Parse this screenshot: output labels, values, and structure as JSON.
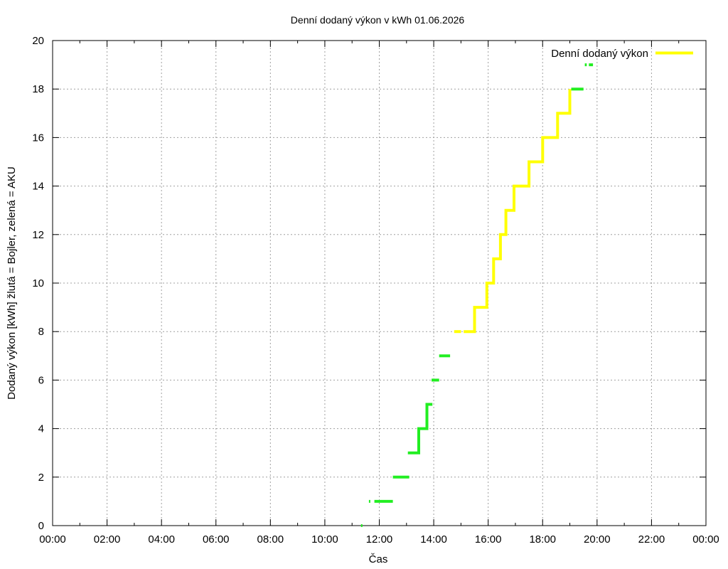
{
  "chart_data": {
    "type": "line",
    "title": "Denní dodaný výkon v kWh 01.06.2026",
    "xlabel": "Čas",
    "ylabel": "Dodaný výkon [kWh]  žlutá = Bojler, zelená = AKU",
    "xlim": [
      0,
      24
    ],
    "ylim": [
      0,
      20
    ],
    "x_unit": "hours",
    "x_ticks": [
      "00:00",
      "02:00",
      "04:00",
      "06:00",
      "08:00",
      "10:00",
      "12:00",
      "14:00",
      "16:00",
      "18:00",
      "20:00",
      "22:00",
      "00:00"
    ],
    "y_ticks": [
      "0",
      "2",
      "4",
      "6",
      "8",
      "10",
      "12",
      "14",
      "16",
      "18",
      "20"
    ],
    "grid": true,
    "legend_position": "top-right",
    "legend": [
      {
        "label": "Denní dodaný výkon",
        "color": "#ffff00"
      }
    ],
    "series": [
      {
        "color": "#ffff00",
        "segments": [
          [
            [
              14.75,
              8
            ],
            [
              15.0,
              8
            ]
          ],
          [
            [
              15.1,
              8
            ],
            [
              15.5,
              8
            ],
            [
              15.5,
              9
            ],
            [
              15.95,
              9
            ],
            [
              15.95,
              10
            ],
            [
              16.2,
              10
            ],
            [
              16.2,
              11
            ],
            [
              16.45,
              11
            ],
            [
              16.45,
              12
            ],
            [
              16.65,
              12
            ],
            [
              16.65,
              13
            ],
            [
              16.95,
              13
            ],
            [
              16.95,
              14
            ],
            [
              17.5,
              14
            ],
            [
              17.5,
              15
            ],
            [
              18.0,
              15
            ],
            [
              18.0,
              16
            ],
            [
              18.55,
              16
            ],
            [
              18.55,
              17
            ],
            [
              19.0,
              17
            ],
            [
              19.0,
              18
            ]
          ]
        ]
      },
      {
        "color": "#22ee22",
        "segments": [
          [
            [
              11.33,
              0
            ],
            [
              11.38,
              0
            ]
          ],
          [
            [
              11.62,
              1
            ],
            [
              11.67,
              1
            ]
          ],
          [
            [
              11.82,
              1
            ],
            [
              12.5,
              1
            ]
          ],
          [
            [
              12.5,
              2
            ],
            [
              13.1,
              2
            ]
          ],
          [
            [
              13.05,
              3
            ],
            [
              13.45,
              3
            ],
            [
              13.45,
              4
            ],
            [
              13.75,
              4
            ],
            [
              13.75,
              5
            ],
            [
              13.95,
              5
            ]
          ],
          [
            [
              13.92,
              6
            ],
            [
              14.2,
              6
            ]
          ],
          [
            [
              14.2,
              7
            ],
            [
              14.6,
              7
            ]
          ],
          [
            [
              19.05,
              18
            ],
            [
              19.5,
              18
            ]
          ],
          [
            [
              19.55,
              19
            ],
            [
              19.62,
              19
            ]
          ],
          [
            [
              19.7,
              19
            ],
            [
              19.85,
              19
            ]
          ]
        ]
      }
    ]
  }
}
